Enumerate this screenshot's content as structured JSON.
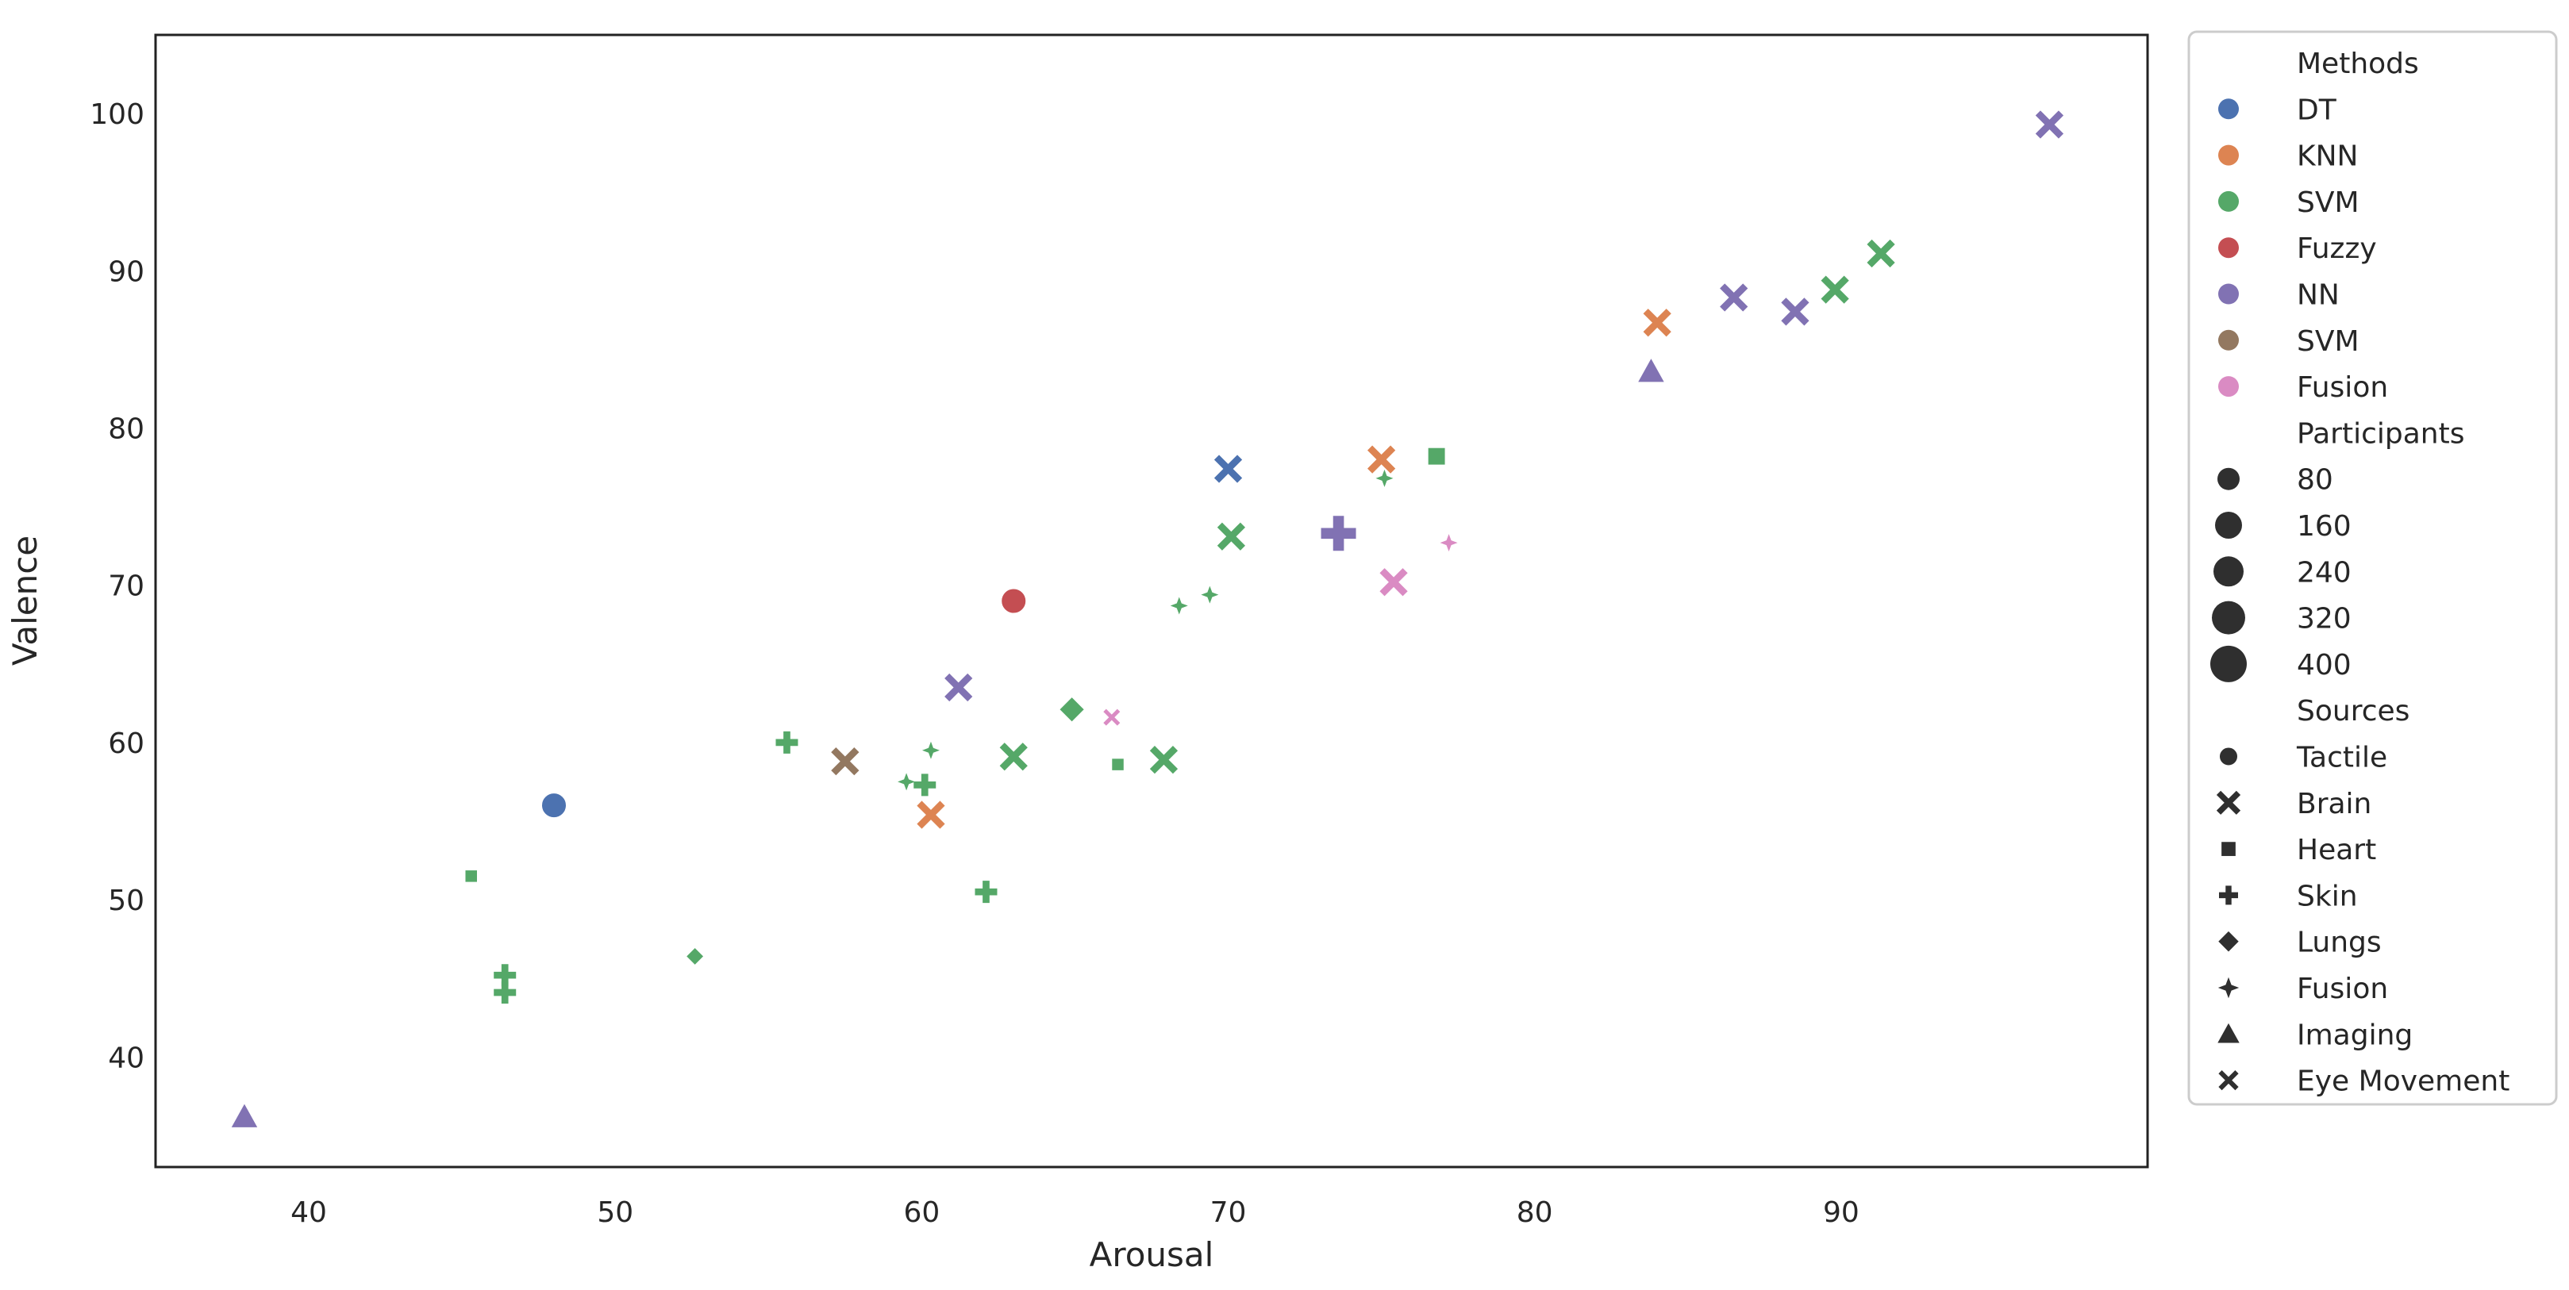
{
  "chart_data": {
    "type": "scatter",
    "xlabel": "Arousal",
    "ylabel": "Valence",
    "xlim": [
      35,
      100
    ],
    "ylim": [
      33,
      105
    ],
    "xticks": [
      40,
      50,
      60,
      70,
      80,
      90
    ],
    "yticks": [
      40,
      50,
      60,
      70,
      80,
      90,
      100
    ],
    "grid": false,
    "legend_placement": "outside-right",
    "legend": {
      "hue_title": "Methods",
      "hue": [
        {
          "label": "DT",
          "color": "#4c72b0"
        },
        {
          "label": "KNN",
          "color": "#dd8452"
        },
        {
          "label": "SVM",
          "color": "#55a868"
        },
        {
          "label": "Fuzzy",
          "color": "#c44e52"
        },
        {
          "label": "NN",
          "color": "#8172b3"
        },
        {
          "label": "SVM",
          "color": "#937860"
        },
        {
          "label": "Fusion",
          "color": "#da8bc3"
        }
      ],
      "size_title": "Participants",
      "sizes": [
        "80",
        "160",
        "240",
        "320",
        "400"
      ],
      "style_title": "Sources",
      "styles": [
        {
          "label": "Tactile",
          "marker": "circle"
        },
        {
          "label": "Brain",
          "marker": "x"
        },
        {
          "label": "Heart",
          "marker": "square"
        },
        {
          "label": "Skin",
          "marker": "plus"
        },
        {
          "label": "Lungs",
          "marker": "diamond"
        },
        {
          "label": "Fusion",
          "marker": "star4"
        },
        {
          "label": "Imaging",
          "marker": "triangle"
        },
        {
          "label": "Eye Movement",
          "marker": "smallx"
        }
      ]
    },
    "points": [
      {
        "x": 96.8,
        "y": 99.3,
        "method": 4,
        "source": "x",
        "size": 1
      },
      {
        "x": 91.3,
        "y": 91.1,
        "method": 2,
        "source": "x",
        "size": 1
      },
      {
        "x": 89.8,
        "y": 88.8,
        "method": 2,
        "source": "x",
        "size": 1
      },
      {
        "x": 86.5,
        "y": 88.3,
        "method": 4,
        "source": "x",
        "size": 1
      },
      {
        "x": 88.5,
        "y": 87.4,
        "method": 4,
        "source": "x",
        "size": 1
      },
      {
        "x": 84.0,
        "y": 86.7,
        "method": 1,
        "source": "x",
        "size": 1
      },
      {
        "x": 83.8,
        "y": 83.6,
        "method": 4,
        "source": "triangle",
        "size": 1
      },
      {
        "x": 70.0,
        "y": 77.4,
        "method": 0,
        "source": "x",
        "size": 1
      },
      {
        "x": 75.0,
        "y": 78.0,
        "method": 1,
        "source": "x",
        "size": 1
      },
      {
        "x": 76.8,
        "y": 78.2,
        "method": 2,
        "source": "square",
        "size": 1
      },
      {
        "x": 75.1,
        "y": 76.8,
        "method": 2,
        "source": "star4",
        "size": 0
      },
      {
        "x": 70.1,
        "y": 73.1,
        "method": 2,
        "source": "x",
        "size": 1
      },
      {
        "x": 73.6,
        "y": 73.3,
        "method": 4,
        "source": "plus",
        "size": 4
      },
      {
        "x": 77.2,
        "y": 72.7,
        "method": 6,
        "source": "star4",
        "size": 0
      },
      {
        "x": 75.4,
        "y": 70.2,
        "method": 6,
        "source": "x",
        "size": 1
      },
      {
        "x": 63.0,
        "y": 69.0,
        "method": 3,
        "source": "circle",
        "size": 2
      },
      {
        "x": 69.4,
        "y": 69.4,
        "method": 2,
        "source": "star4",
        "size": 0
      },
      {
        "x": 68.4,
        "y": 68.7,
        "method": 2,
        "source": "star4",
        "size": 0
      },
      {
        "x": 61.2,
        "y": 63.5,
        "method": 4,
        "source": "x",
        "size": 1
      },
      {
        "x": 64.9,
        "y": 62.1,
        "method": 2,
        "source": "diamond",
        "size": 1
      },
      {
        "x": 66.2,
        "y": 61.6,
        "method": 6,
        "source": "smallx",
        "size": 0
      },
      {
        "x": 55.6,
        "y": 60.0,
        "method": 2,
        "source": "plus",
        "size": 1
      },
      {
        "x": 60.3,
        "y": 59.5,
        "method": 2,
        "source": "star4",
        "size": 0
      },
      {
        "x": 63.0,
        "y": 59.1,
        "method": 2,
        "source": "x",
        "size": 1
      },
      {
        "x": 67.9,
        "y": 58.9,
        "method": 2,
        "source": "x",
        "size": 1
      },
      {
        "x": 57.5,
        "y": 58.8,
        "method": 5,
        "source": "x",
        "size": 1
      },
      {
        "x": 66.4,
        "y": 58.6,
        "method": 2,
        "source": "square",
        "size": 0
      },
      {
        "x": 59.5,
        "y": 57.5,
        "method": 2,
        "source": "star4",
        "size": 0
      },
      {
        "x": 60.1,
        "y": 57.3,
        "method": 2,
        "source": "plus",
        "size": 1
      },
      {
        "x": 48.0,
        "y": 56.0,
        "method": 0,
        "source": "circle",
        "size": 2
      },
      {
        "x": 60.3,
        "y": 55.4,
        "method": 1,
        "source": "x",
        "size": 1
      },
      {
        "x": 45.3,
        "y": 51.5,
        "method": 2,
        "source": "square",
        "size": 0
      },
      {
        "x": 62.1,
        "y": 50.5,
        "method": 2,
        "source": "plus",
        "size": 1
      },
      {
        "x": 52.6,
        "y": 46.4,
        "method": 2,
        "source": "diamond",
        "size": 0
      },
      {
        "x": 46.4,
        "y": 45.2,
        "method": 2,
        "source": "plus",
        "size": 1
      },
      {
        "x": 46.4,
        "y": 44.1,
        "method": 2,
        "source": "plus",
        "size": 1
      },
      {
        "x": 37.9,
        "y": 36.2,
        "method": 4,
        "source": "triangle",
        "size": 1
      }
    ]
  }
}
